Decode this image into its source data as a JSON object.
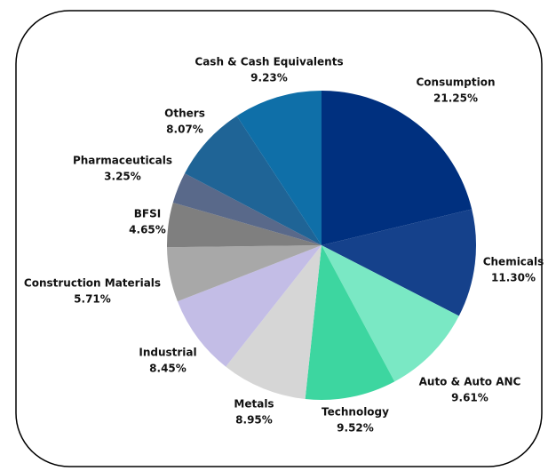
{
  "chart_data": {
    "type": "pie",
    "categories": [
      "Consumption",
      "Chemicals",
      "Auto & Auto ANC",
      "Technology",
      "Metals",
      "Industrial",
      "Construction Materials",
      "BFSI",
      "Pharmaceuticals",
      "Others",
      "Cash & Cash Equivalents"
    ],
    "values": [
      21.25,
      11.3,
      9.61,
      9.52,
      8.95,
      8.45,
      5.71,
      4.65,
      3.25,
      8.07,
      9.23
    ],
    "value_labels": [
      "21.25%",
      "11.30%",
      "9.61%",
      "9.52%",
      "8.95%",
      "8.45%",
      "5.71%",
      "4.65%",
      "3.25%",
      "8.07%",
      "9.23%"
    ],
    "colors": [
      "#00307f",
      "#15418b",
      "#7ae8c4",
      "#3dd6a0",
      "#d6d6d6",
      "#c3bde6",
      "#a8a8a8",
      "#7f7f7f",
      "#59698a",
      "#1f6496",
      "#0f6fa8"
    ]
  }
}
